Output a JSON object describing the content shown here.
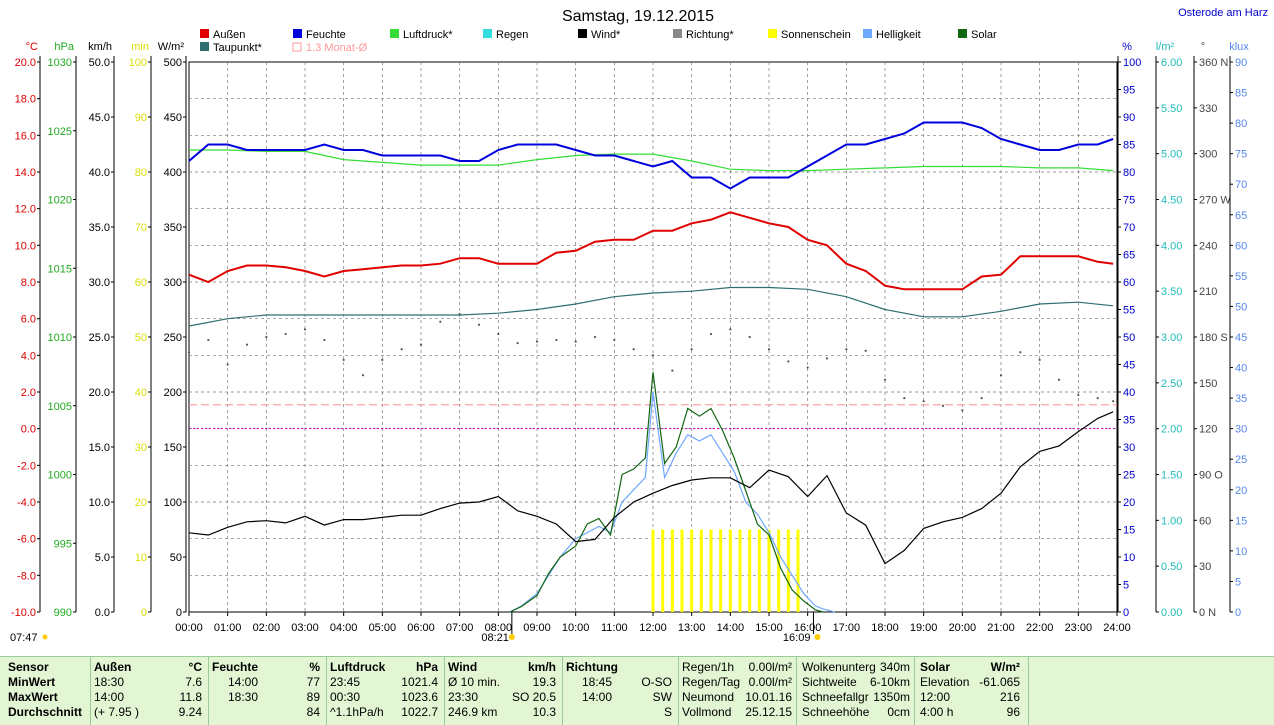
{
  "title": "Samstag, 19.12.2015",
  "location": "Osterode am Harz",
  "legend": [
    {
      "label": "Außen",
      "color": "#e00000"
    },
    {
      "label": "Taupunkt*",
      "color": "#2f6f6f"
    },
    {
      "label": "Feuchte",
      "color": "#0000dd"
    },
    {
      "label": "1.3 Monat-Ø",
      "color": "#ff9999",
      "outline": true
    },
    {
      "label": "Luftdruck*",
      "color": "#33dd33"
    },
    {
      "label": "Regen",
      "color": "#33dddd"
    },
    {
      "label": "Wind*",
      "color": "#000000"
    },
    {
      "label": "Richtung*",
      "color": "#888888"
    },
    {
      "label": "Sonnenschein",
      "color": "#ffff00"
    },
    {
      "label": "Helligkeit",
      "color": "#6fa8ff"
    },
    {
      "label": "Solar",
      "color": "#116611"
    }
  ],
  "left_axes": [
    {
      "unit": "°C",
      "color": "#dd0000",
      "ticks": [
        "20.0",
        "18.0",
        "16.0",
        "14.0",
        "12.0",
        "10.0",
        "8.0",
        "6.0",
        "4.0",
        "2.0",
        "0.0",
        "-2.0",
        "-4.0",
        "-6.0",
        "-8.0",
        "-10.0"
      ]
    },
    {
      "unit": "hPa",
      "color": "#22aa22",
      "ticks": [
        "1030",
        "1025",
        "1020",
        "1015",
        "1010",
        "1005",
        "1000",
        "995",
        "990"
      ]
    },
    {
      "unit": "km/h",
      "color": "#000000",
      "ticks": [
        "50.0",
        "45.0",
        "40.0",
        "35.0",
        "30.0",
        "25.0",
        "20.0",
        "15.0",
        "10.0",
        "5.0",
        "0.0"
      ]
    },
    {
      "unit": "min",
      "color": "#dddd00",
      "ticks": [
        "100",
        "90",
        "80",
        "70",
        "60",
        "50",
        "40",
        "30",
        "20",
        "10",
        "0"
      ]
    },
    {
      "unit": "W/m²",
      "color": "#000000",
      "ticks": [
        "500",
        "450",
        "400",
        "350",
        "300",
        "250",
        "200",
        "150",
        "100",
        "50",
        "0"
      ]
    }
  ],
  "right_axes": [
    {
      "unit": "%",
      "color": "#0000cc",
      "ticks": [
        "100",
        "95",
        "90",
        "85",
        "80",
        "75",
        "70",
        "65",
        "60",
        "55",
        "50",
        "45",
        "40",
        "35",
        "30",
        "25",
        "20",
        "15",
        "10",
        "5",
        "0"
      ]
    },
    {
      "unit": "l/m²",
      "color": "#22bbbb",
      "ticks": [
        "6.00",
        "5.50",
        "5.00",
        "4.50",
        "4.00",
        "3.50",
        "3.00",
        "2.50",
        "2.00",
        "1.50",
        "1.00",
        "0.50",
        "0.00"
      ]
    },
    {
      "unit": "°",
      "color": "#444444",
      "ticks": [
        "360 N",
        "330",
        "300",
        "270 W",
        "240",
        "210",
        "180 S",
        "150",
        "120",
        "90 O",
        "60",
        "30",
        "0 N"
      ]
    },
    {
      "unit": "klux",
      "color": "#5588ee",
      "ticks": [
        "90",
        "85",
        "80",
        "75",
        "70",
        "65",
        "60",
        "55",
        "50",
        "45",
        "40",
        "35",
        "30",
        "25",
        "20",
        "15",
        "10",
        "5",
        "0"
      ]
    }
  ],
  "x_ticks": [
    "00:00",
    "01:00",
    "02:00",
    "03:00",
    "04:00",
    "05:00",
    "06:00",
    "07:00",
    "08:00",
    "09:00",
    "10:00",
    "11:00",
    "12:00",
    "13:00",
    "14:00",
    "15:00",
    "16:00",
    "17:00",
    "18:00",
    "19:00",
    "20:00",
    "21:00",
    "22:00",
    "23:00",
    "24:00"
  ],
  "sun": {
    "day_start": "07:47",
    "sunrise": "08:21",
    "sunset": "16:09"
  },
  "chart_data": {
    "type": "line",
    "title": "Samstag, 19.12.2015",
    "xlabel": "",
    "x_range_hours": [
      0,
      24
    ],
    "grid": true,
    "series": [
      {
        "name": "Außen",
        "unit": "°C",
        "color": "#e00000",
        "ylim": [
          -10,
          20
        ],
        "x": [
          0,
          0.5,
          1,
          1.5,
          2,
          2.5,
          3,
          3.5,
          4,
          4.5,
          5,
          5.5,
          6,
          6.5,
          7,
          7.5,
          8,
          8.5,
          9,
          9.5,
          10,
          10.5,
          11,
          11.5,
          12,
          12.5,
          13,
          13.5,
          14,
          14.5,
          15,
          15.5,
          16,
          16.5,
          17,
          17.5,
          18,
          18.5,
          19,
          19.5,
          20,
          20.5,
          21,
          21.5,
          22,
          22.5,
          23,
          23.5,
          23.9
        ],
        "values": [
          8.4,
          8.0,
          8.6,
          8.9,
          8.9,
          8.8,
          8.6,
          8.3,
          8.6,
          8.7,
          8.8,
          8.9,
          8.9,
          9.0,
          9.3,
          9.3,
          9.0,
          9.0,
          9.0,
          9.6,
          9.7,
          10.2,
          10.3,
          10.3,
          10.8,
          10.8,
          11.2,
          11.4,
          11.8,
          11.5,
          11.2,
          11.0,
          10.3,
          10.0,
          9.0,
          8.6,
          7.8,
          7.6,
          7.6,
          7.6,
          7.6,
          8.3,
          8.4,
          9.4,
          9.4,
          9.4,
          9.4,
          9.1,
          9.0
        ]
      },
      {
        "name": "Taupunkt*",
        "unit": "°C",
        "color": "#2f6f6f",
        "ylim": [
          -10,
          20
        ],
        "x": [
          0,
          1,
          2,
          3,
          4,
          5,
          6,
          7,
          8,
          9,
          10,
          11,
          12,
          13,
          14,
          15,
          16,
          17,
          18,
          19,
          20,
          21,
          22,
          23,
          23.9
        ],
        "values": [
          5.6,
          6.0,
          6.2,
          6.2,
          6.2,
          6.2,
          6.2,
          6.2,
          6.3,
          6.5,
          6.8,
          7.2,
          7.4,
          7.5,
          7.7,
          7.7,
          7.6,
          7.2,
          6.5,
          6.1,
          6.1,
          6.4,
          6.8,
          6.9,
          6.7
        ]
      },
      {
        "name": "Feuchte",
        "unit": "%",
        "color": "#0000dd",
        "ylim": [
          0,
          100
        ],
        "x": [
          0,
          0.5,
          1,
          1.5,
          2,
          2.5,
          3,
          3.5,
          4,
          4.5,
          5,
          5.5,
          6,
          6.5,
          7,
          7.5,
          8,
          8.5,
          9,
          9.5,
          10,
          10.5,
          11,
          11.5,
          12,
          12.5,
          13,
          13.5,
          14,
          14.5,
          15,
          15.5,
          16,
          16.5,
          17,
          17.5,
          18,
          18.5,
          19,
          19.5,
          20,
          20.5,
          21,
          21.5,
          22,
          22.5,
          23,
          23.5,
          23.9
        ],
        "values": [
          82,
          85,
          85,
          84,
          84,
          84,
          84,
          85,
          84,
          84,
          83,
          83,
          83,
          83,
          82,
          82,
          84,
          85,
          85,
          85,
          84,
          83,
          83,
          82,
          81,
          82,
          79,
          79,
          77,
          79,
          79,
          79,
          81,
          83,
          85,
          85,
          86,
          87,
          89,
          89,
          89,
          88,
          86,
          85,
          84,
          84,
          85,
          85,
          86
        ]
      },
      {
        "name": "1.3 Monat-Ø",
        "unit": "°C",
        "color": "#ff9999",
        "dash": "8,4",
        "ylim": [
          -10,
          20
        ],
        "x": [
          0,
          24
        ],
        "values": [
          1.3,
          1.3
        ]
      },
      {
        "name": "Luftdruck*",
        "unit": "hPa",
        "color": "#33dd33",
        "ylim": [
          990,
          1030
        ],
        "x": [
          0,
          1,
          2,
          3,
          4,
          5,
          6,
          7,
          8,
          9,
          10,
          11,
          12,
          13,
          14,
          15,
          16,
          17,
          18,
          19,
          20,
          21,
          22,
          23,
          23.9
        ],
        "values": [
          1023.6,
          1023.6,
          1023.5,
          1023.5,
          1022.9,
          1022.7,
          1022.5,
          1022.5,
          1022.5,
          1022.9,
          1023.2,
          1023.3,
          1023.3,
          1022.8,
          1022.2,
          1022.1,
          1022.1,
          1022.2,
          1022.3,
          1022.4,
          1022.4,
          1022.4,
          1022.3,
          1022.3,
          1022.1
        ]
      },
      {
        "name": "Wind*",
        "unit": "km/h",
        "color": "#000000",
        "ylim": [
          0,
          50
        ],
        "x": [
          0,
          0.5,
          1,
          1.5,
          2,
          2.5,
          3,
          3.5,
          4,
          4.5,
          5,
          5.5,
          6,
          6.5,
          7,
          7.5,
          8,
          8.5,
          9,
          9.5,
          10,
          10.5,
          11,
          11.5,
          12,
          12.5,
          13,
          13.5,
          14,
          14.5,
          15,
          15.5,
          16,
          16.5,
          17,
          17.5,
          18,
          18.5,
          19,
          19.5,
          20,
          20.5,
          21,
          21.5,
          22,
          22.5,
          23,
          23.5,
          23.9
        ],
        "values": [
          7.2,
          7.0,
          7.7,
          8.2,
          8.3,
          8.1,
          8.7,
          7.9,
          8.4,
          8.4,
          8.6,
          8.8,
          8.8,
          9.4,
          9.9,
          10.0,
          10.5,
          9.2,
          8.7,
          8.0,
          6.4,
          6.6,
          8.6,
          10.0,
          10.8,
          11.5,
          12.0,
          12.2,
          12.2,
          11.3,
          12.9,
          12.3,
          10.5,
          12.4,
          9.0,
          7.9,
          4.4,
          5.6,
          7.6,
          8.2,
          8.6,
          9.4,
          10.8,
          13.2,
          14.6,
          15.1,
          16.4,
          17.6,
          18.2
        ]
      },
      {
        "name": "Richtung*",
        "unit": "°",
        "color": "#555555",
        "style": "dots",
        "ylim": [
          0,
          360
        ],
        "x": [
          0,
          0.5,
          1,
          1.5,
          2,
          2.5,
          3,
          3.5,
          4,
          4.5,
          5,
          5.5,
          6,
          6.5,
          7,
          7.5,
          8,
          8.5,
          9,
          9.5,
          10,
          10.5,
          11,
          11.5,
          12,
          12.5,
          13,
          13.5,
          14,
          14.5,
          15,
          15.5,
          16,
          16.5,
          17,
          17.5,
          18,
          18.5,
          19,
          19.5,
          20,
          20.5,
          21,
          21.5,
          22,
          22.5,
          23,
          23.5,
          23.9
        ],
        "values": [
          170,
          178,
          162,
          175,
          180,
          182,
          185,
          178,
          165,
          155,
          165,
          172,
          175,
          190,
          195,
          188,
          182,
          176,
          177,
          178,
          177,
          180,
          178,
          172,
          168,
          158,
          172,
          182,
          185,
          180,
          172,
          164,
          160,
          166,
          172,
          171,
          152,
          140,
          138,
          135,
          132,
          140,
          155,
          170,
          165,
          152,
          142,
          140,
          138
        ]
      },
      {
        "name": "Solar",
        "unit": "W/m²",
        "color": "#116611",
        "ylim": [
          0,
          500
        ],
        "x": [
          8.3,
          8.6,
          9,
          9.3,
          9.6,
          10,
          10.3,
          10.6,
          10.9,
          11.2,
          11.5,
          11.8,
          12,
          12.3,
          12.6,
          12.9,
          13.2,
          13.5,
          13.8,
          14.1,
          14.4,
          14.7,
          15,
          15.3,
          15.6,
          15.9,
          16.2,
          16.4
        ],
        "values": [
          0,
          5,
          15,
          35,
          50,
          60,
          80,
          85,
          70,
          125,
          130,
          140,
          218,
          135,
          150,
          185,
          178,
          185,
          165,
          140,
          110,
          80,
          70,
          40,
          20,
          10,
          2,
          0
        ]
      },
      {
        "name": "Helligkeit",
        "unit": "klux",
        "color": "#6fa8ff",
        "ylim": [
          0,
          90
        ],
        "x": [
          8.3,
          8.6,
          9,
          9.3,
          9.6,
          10,
          10.3,
          10.6,
          10.9,
          11.2,
          11.5,
          11.8,
          12,
          12.3,
          12.6,
          12.9,
          13.2,
          13.5,
          13.8,
          14.1,
          14.4,
          14.7,
          15,
          15.3,
          15.6,
          15.9,
          16.2,
          16.4,
          16.7
        ],
        "values": [
          0,
          1,
          3,
          6,
          9,
          12,
          13,
          14,
          13,
          18,
          20,
          22,
          36,
          22,
          26,
          29,
          28,
          29,
          26,
          23,
          18,
          16,
          13,
          9,
          6,
          3,
          1,
          0.5,
          0
        ]
      },
      {
        "name": "Sonnenschein",
        "unit": "min",
        "color": "#ffff00",
        "style": "bars",
        "ylim": [
          0,
          100
        ],
        "x": [
          12.0,
          12.25,
          12.5,
          12.75,
          13.0,
          13.25,
          13.5,
          13.75,
          14.0,
          14.25,
          14.5,
          14.75,
          15.0,
          15.25,
          15.5,
          15.75
        ],
        "values": [
          15,
          15,
          15,
          15,
          15,
          15,
          15,
          15,
          15,
          15,
          15,
          15,
          15,
          15,
          15,
          15
        ]
      }
    ]
  },
  "stats": {
    "sensor": {
      "label": "Sensor",
      "rows": [
        "MinWert",
        "MaxWert",
        "Durchschnitt"
      ]
    },
    "aussen": {
      "label": "Außen",
      "unit": "°C",
      "rows": [
        [
          "18:30",
          "7.6"
        ],
        [
          "14:00",
          "11.8"
        ],
        [
          "(+ 7.95 )",
          "9.24"
        ]
      ]
    },
    "feuchte": {
      "label": "Feuchte",
      "unit": "%",
      "rows": [
        [
          "14:00",
          "77"
        ],
        [
          "18:30",
          "89"
        ],
        [
          "",
          "84"
        ]
      ]
    },
    "luftdruck": {
      "label": "Luftdruck",
      "unit": "hPa",
      "rows": [
        [
          "23:45",
          "1021.4"
        ],
        [
          "00:30",
          "1023.6"
        ],
        [
          "^1.1hPa/h",
          "1022.7"
        ]
      ]
    },
    "wind": {
      "label": "Wind",
      "unit": "km/h",
      "rows": [
        [
          "Ø 10 min.",
          "19.3"
        ],
        [
          "23:30",
          "SO 20.5"
        ],
        [
          "246.9 km",
          "10.3"
        ]
      ]
    },
    "richtung": {
      "label": "Richtung",
      "rows": [
        [
          "18:45",
          "O-SO"
        ],
        [
          "14:00",
          "SW"
        ],
        [
          "",
          "S"
        ]
      ]
    },
    "regen": {
      "rows": [
        [
          "Regen/1h",
          "0.00l/m²"
        ],
        [
          "Regen/Tag",
          "0.00l/m²"
        ],
        [
          "Neumond",
          "10.01.16"
        ],
        [
          "Vollmond",
          "25.12.15"
        ]
      ]
    },
    "wolken": {
      "rows": [
        [
          "Wolkenunterg",
          "340m"
        ],
        [
          "Sichtweite",
          "6-10km"
        ],
        [
          "Schneefallgr",
          "1350m"
        ],
        [
          "Schneehöhe",
          "0cm"
        ]
      ]
    },
    "solar": {
      "label": "Solar",
      "unit": "W/m²",
      "rows": [
        [
          "Elevation",
          "-61.065"
        ],
        [
          "12:00",
          "216"
        ],
        [
          "4:00 h",
          "96"
        ]
      ]
    }
  }
}
